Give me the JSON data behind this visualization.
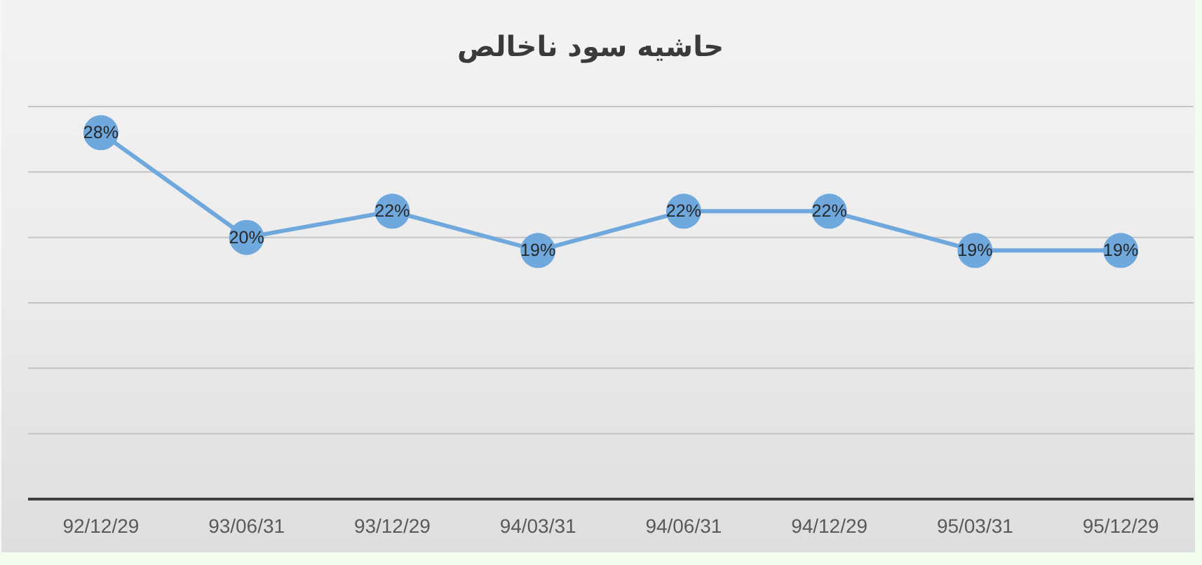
{
  "chart_data": {
    "type": "line",
    "title": "حاشیه سود ناخالص",
    "categories": [
      "92/12/29",
      "93/06/31",
      "93/12/29",
      "94/03/31",
      "94/06/31",
      "94/12/29",
      "95/03/31",
      "95/12/29"
    ],
    "values": [
      28,
      20,
      22,
      19,
      22,
      22,
      19,
      19
    ],
    "value_labels": [
      "28%",
      "20%",
      "22%",
      "19%",
      "22%",
      "22%",
      "19%",
      "19%"
    ],
    "color": "#6fa8dc",
    "marker": "circle",
    "ylim": [
      0,
      30
    ],
    "yticks": [
      {
        "value": 0,
        "label": null
      },
      {
        "value": 5,
        "label": null
      },
      {
        "value": 10,
        "label": null
      },
      {
        "value": 15,
        "label": null
      },
      {
        "value": 20,
        "label": null
      },
      {
        "value": 25,
        "label": null
      },
      {
        "value": 30,
        "label": null
      }
    ],
    "grid": "y",
    "tick_labels": "x"
  }
}
